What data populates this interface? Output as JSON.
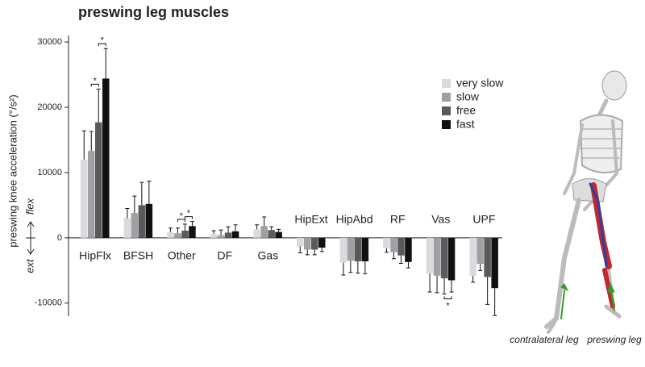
{
  "chart_data": {
    "type": "bar",
    "title": "preswing leg muscles",
    "y_label": "preswing knee acceleration (°/s²)",
    "direction_labels": {
      "up": "flex",
      "down": "ext"
    },
    "categories": [
      "HipFlx",
      "BFSH",
      "Other",
      "DF",
      "Gas",
      "HipExt",
      "HipAbd",
      "RF",
      "Vas",
      "UPF"
    ],
    "series": [
      {
        "name": "very slow",
        "color": "#d9d9de",
        "values": [
          12000,
          3000,
          900,
          600,
          1300,
          -1300,
          -3800,
          -1600,
          -5500,
          -5800
        ],
        "errors": [
          4400,
          1500,
          600,
          500,
          700,
          1000,
          1900,
          600,
          2800,
          1000
        ]
      },
      {
        "name": "slow",
        "color": "#a0a0a4",
        "values": [
          13300,
          3800,
          700,
          400,
          1800,
          -1800,
          -3500,
          -2200,
          -5800,
          -4000
        ],
        "errors": [
          3000,
          2600,
          800,
          800,
          1400,
          800,
          1800,
          1000,
          2600,
          1000
        ]
      },
      {
        "name": "free",
        "color": "#5a5a5a",
        "values": [
          17700,
          5000,
          1100,
          800,
          1200,
          -1800,
          -3600,
          -2700,
          -6200,
          -6000
        ],
        "errors": [
          5100,
          3500,
          1000,
          900,
          500,
          800,
          1800,
          1200,
          2400,
          4200
        ]
      },
      {
        "name": "fast",
        "color": "#111111",
        "values": [
          24400,
          5200,
          1800,
          1000,
          900,
          -1500,
          -3600,
          -3700,
          -6500,
          -7700
        ],
        "errors": [
          4600,
          3500,
          700,
          1000,
          400,
          600,
          1900,
          900,
          1800,
          4200
        ]
      }
    ],
    "annotations": [
      "*",
      "*",
      "*",
      "*",
      "*"
    ],
    "ylim": [
      -12000,
      31000
    ],
    "yticks": [
      -10000,
      0,
      10000,
      20000,
      30000
    ],
    "legend": "right",
    "figure_labels": {
      "left": "contralateral leg",
      "right": "preswing leg"
    }
  }
}
